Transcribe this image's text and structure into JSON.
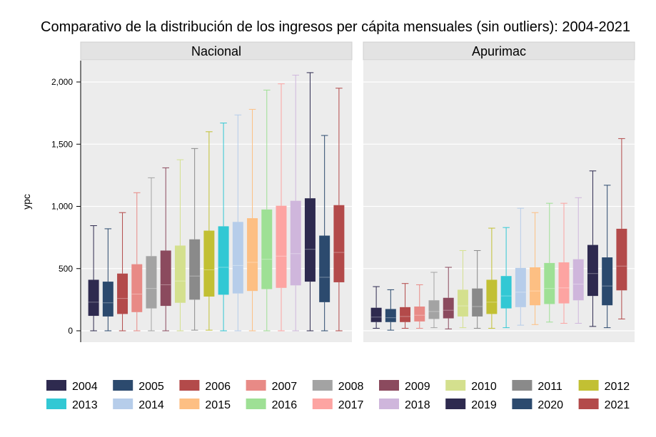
{
  "chart_data": {
    "type": "boxplot",
    "title": "Comparativo de la distribución de los ingresos per cápita mensuales (sin outliers): 2004-2021",
    "ylabel": "ypc",
    "ylim": [
      0,
      2150
    ],
    "yticks": [
      0,
      500,
      1000,
      1500,
      2000
    ],
    "ytick_labels": [
      "0",
      "500",
      "1,000",
      "1,500",
      "2,000"
    ],
    "grid": true,
    "legend_position": "bottom",
    "categories": [
      "2004",
      "2005",
      "2006",
      "2007",
      "2008",
      "2009",
      "2010",
      "2011",
      "2012",
      "2013",
      "2014",
      "2015",
      "2016",
      "2017",
      "2018",
      "2019",
      "2020",
      "2021"
    ],
    "colors": [
      "#2e2a4f",
      "#2c4a6e",
      "#b34a4a",
      "#e88a86",
      "#a3a3a3",
      "#8b4a5e",
      "#d4e08e",
      "#8a8a8a",
      "#c2c033",
      "#32c8d4",
      "#b6cdea",
      "#fdbf83",
      "#9ee095",
      "#fda4a2",
      "#cfb6dc",
      "#2e2a4f",
      "#2c4a6e",
      "#b34a4a"
    ],
    "panels": [
      {
        "label": "Nacional",
        "boxes": [
          {
            "min": 0,
            "q1": 120,
            "median": 230,
            "q3": 410,
            "max": 845
          },
          {
            "min": 0,
            "q1": 115,
            "median": 225,
            "q3": 395,
            "max": 820
          },
          {
            "min": 0,
            "q1": 135,
            "median": 260,
            "q3": 460,
            "max": 950
          },
          {
            "min": 0,
            "q1": 150,
            "median": 295,
            "q3": 535,
            "max": 1110
          },
          {
            "min": 0,
            "q1": 180,
            "median": 340,
            "q3": 600,
            "max": 1230
          },
          {
            "min": 0,
            "q1": 200,
            "median": 370,
            "q3": 645,
            "max": 1310
          },
          {
            "min": 0,
            "q1": 225,
            "median": 400,
            "q3": 685,
            "max": 1375
          },
          {
            "min": 5,
            "q1": 250,
            "median": 440,
            "q3": 735,
            "max": 1465
          },
          {
            "min": 5,
            "q1": 275,
            "median": 490,
            "q3": 805,
            "max": 1600
          },
          {
            "min": 0,
            "q1": 290,
            "median": 510,
            "q3": 840,
            "max": 1670
          },
          {
            "min": 0,
            "q1": 300,
            "median": 525,
            "q3": 875,
            "max": 1735
          },
          {
            "min": 0,
            "q1": 320,
            "median": 550,
            "q3": 905,
            "max": 1780
          },
          {
            "min": 0,
            "q1": 335,
            "median": 575,
            "q3": 975,
            "max": 1935
          },
          {
            "min": 0,
            "q1": 345,
            "median": 600,
            "q3": 1005,
            "max": 1985
          },
          {
            "min": 0,
            "q1": 365,
            "median": 620,
            "q3": 1045,
            "max": 2055
          },
          {
            "min": 0,
            "q1": 395,
            "median": 655,
            "q3": 1065,
            "max": 2075
          },
          {
            "min": 0,
            "q1": 230,
            "median": 430,
            "q3": 765,
            "max": 1570
          },
          {
            "min": 0,
            "q1": 390,
            "median": 630,
            "q3": 1010,
            "max": 1950
          }
        ]
      },
      {
        "label": "Apurimac",
        "boxes": [
          {
            "min": 20,
            "q1": 70,
            "median": 110,
            "q3": 185,
            "max": 355
          },
          {
            "min": 5,
            "q1": 70,
            "median": 105,
            "q3": 175,
            "max": 330
          },
          {
            "min": 20,
            "q1": 70,
            "median": 115,
            "q3": 190,
            "max": 380
          },
          {
            "min": 20,
            "q1": 75,
            "median": 125,
            "q3": 195,
            "max": 370
          },
          {
            "min": 25,
            "q1": 95,
            "median": 155,
            "q3": 245,
            "max": 470
          },
          {
            "min": 15,
            "q1": 100,
            "median": 165,
            "q3": 265,
            "max": 510
          },
          {
            "min": 25,
            "q1": 115,
            "median": 200,
            "q3": 330,
            "max": 645
          },
          {
            "min": 20,
            "q1": 115,
            "median": 195,
            "q3": 340,
            "max": 645
          },
          {
            "min": 20,
            "q1": 135,
            "median": 230,
            "q3": 410,
            "max": 825
          },
          {
            "min": 25,
            "q1": 180,
            "median": 280,
            "q3": 440,
            "max": 830
          },
          {
            "min": 45,
            "q1": 190,
            "median": 310,
            "q3": 505,
            "max": 985
          },
          {
            "min": 50,
            "q1": 205,
            "median": 320,
            "q3": 510,
            "max": 950
          },
          {
            "min": 70,
            "q1": 215,
            "median": 340,
            "q3": 545,
            "max": 1025
          },
          {
            "min": 60,
            "q1": 220,
            "median": 345,
            "q3": 550,
            "max": 1025
          },
          {
            "min": 60,
            "q1": 245,
            "median": 375,
            "q3": 575,
            "max": 1070
          },
          {
            "min": 35,
            "q1": 280,
            "median": 460,
            "q3": 690,
            "max": 1285
          },
          {
            "min": 25,
            "q1": 205,
            "median": 360,
            "q3": 590,
            "max": 1170
          },
          {
            "min": 95,
            "q1": 325,
            "median": 520,
            "q3": 820,
            "max": 1545
          }
        ]
      }
    ]
  }
}
